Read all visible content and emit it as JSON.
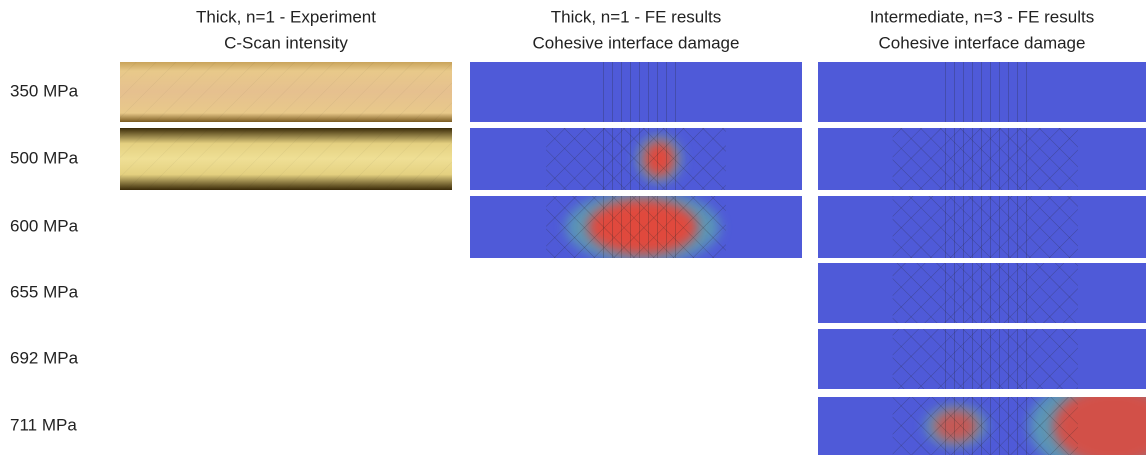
{
  "columns": [
    {
      "title": [
        "Thick, n=1 - Experiment",
        "C-Scan intensity"
      ]
    },
    {
      "title": [
        "Thick, n=1 - FE results",
        "Cohesive interface damage"
      ]
    },
    {
      "title": [
        "Intermediate, n=3 - FE results",
        "Cohesive interface damage"
      ]
    }
  ],
  "rows": [
    "350 MPa",
    "500 MPa",
    "600 MPa",
    "655 MPa",
    "692 MPa",
    "711 MPa"
  ]
}
